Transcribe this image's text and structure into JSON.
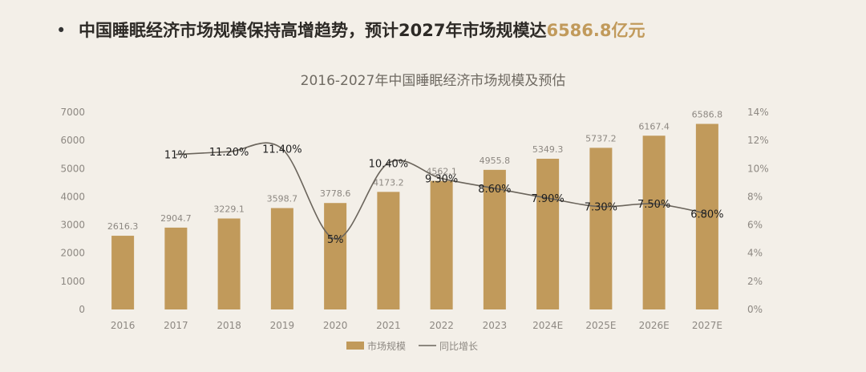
{
  "headline": {
    "bullet": "•",
    "text": "中国睡眠经济市场规模保持高增趋势，预计2027年市场规模达",
    "accent": "6586.8亿元"
  },
  "colors": {
    "bar": "#c19a5b",
    "line": "#6b655c",
    "background": "#f3efe8"
  },
  "chart_data": {
    "type": "bar",
    "title": "2016-2027年中国睡眠经济市场规模及预估",
    "categories": [
      "2016",
      "2017",
      "2018",
      "2019",
      "2020",
      "2021",
      "2022",
      "2023",
      "2024E",
      "2025E",
      "2026E",
      "2027E"
    ],
    "series": [
      {
        "name": "市场规模",
        "type": "bar",
        "axis": "left",
        "values": [
          2616.3,
          2904.7,
          3229.1,
          3598.7,
          3778.6,
          4173.2,
          4562.1,
          4955.8,
          5349.3,
          5737.2,
          6167.4,
          6586.8
        ],
        "labels": [
          "2616.3",
          "2904.7",
          "3229.1",
          "3598.7",
          "3778.6",
          "4173.2",
          "4562.1",
          "4955.8",
          "5349.3",
          "5737.2",
          "6167.4",
          "6586.8"
        ]
      },
      {
        "name": "同比增长",
        "type": "line",
        "axis": "right",
        "values": [
          null,
          11,
          11.2,
          11.4,
          5,
          10.4,
          9.3,
          8.6,
          7.9,
          7.3,
          7.5,
          6.8
        ],
        "labels": [
          "",
          "11%",
          "11.20%",
          "11.40%",
          "5%",
          "10.40%",
          "9.30%",
          "8.60%",
          "7.90%",
          "7.30%",
          "7.50%",
          "6.80%"
        ]
      }
    ],
    "y_left": {
      "min": 0,
      "max": 7000,
      "ticks": [
        "0",
        "1000",
        "2000",
        "3000",
        "4000",
        "5000",
        "6000",
        "7000"
      ]
    },
    "y_right": {
      "min": 0,
      "max": 14,
      "ticks": [
        "0%",
        "2%",
        "4%",
        "6%",
        "8%",
        "10%",
        "12%",
        "14%"
      ]
    },
    "grid": false,
    "legend": "bottom"
  }
}
